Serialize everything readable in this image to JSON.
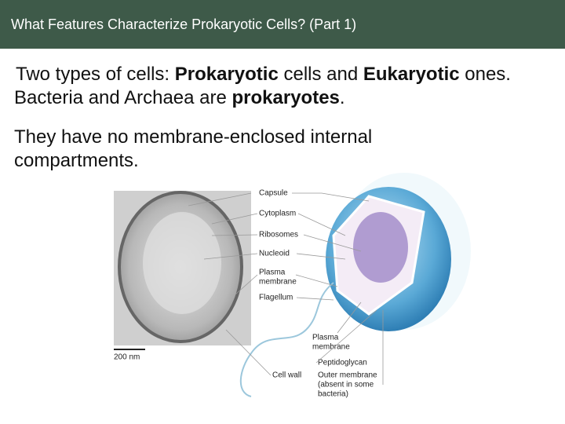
{
  "header": {
    "title": "What Features Characterize Prokaryotic Cells? (Part 1)"
  },
  "body": {
    "paragraphs": [
      [
        {
          "text": "Two types of cells: ",
          "bold": false
        },
        {
          "text": "Prokaryotic",
          "bold": true
        },
        {
          "text": " cells and ",
          "bold": false
        },
        {
          "text": "Eukaryotic",
          "bold": true
        },
        {
          "text": " ones. Bacteria and Archaea are ",
          "bold": false
        },
        {
          "text": "prokaryotes",
          "bold": true
        },
        {
          "text": ".",
          "bold": false
        }
      ],
      [
        {
          "text": "They have no membrane-enclosed internal compartments.",
          "bold": false
        }
      ]
    ]
  },
  "figure": {
    "scale_bar": "200 nm",
    "labels": [
      {
        "lines": [
          "Capsule"
        ]
      },
      {
        "lines": [
          "Cytoplasm"
        ]
      },
      {
        "lines": [
          "Ribosomes"
        ]
      },
      {
        "lines": [
          "Nucleoid"
        ]
      },
      {
        "lines": [
          "Plasma",
          "membrane"
        ]
      },
      {
        "lines": [
          "Flagellum"
        ]
      },
      {
        "lines": [
          "Plasma",
          "membrane"
        ]
      },
      {
        "lines": [
          "Peptidoglycan"
        ]
      },
      {
        "lines": [
          "Cell wall"
        ]
      },
      {
        "lines": [
          "Outer membrane",
          "(absent in some",
          "bacteria)"
        ]
      }
    ]
  }
}
